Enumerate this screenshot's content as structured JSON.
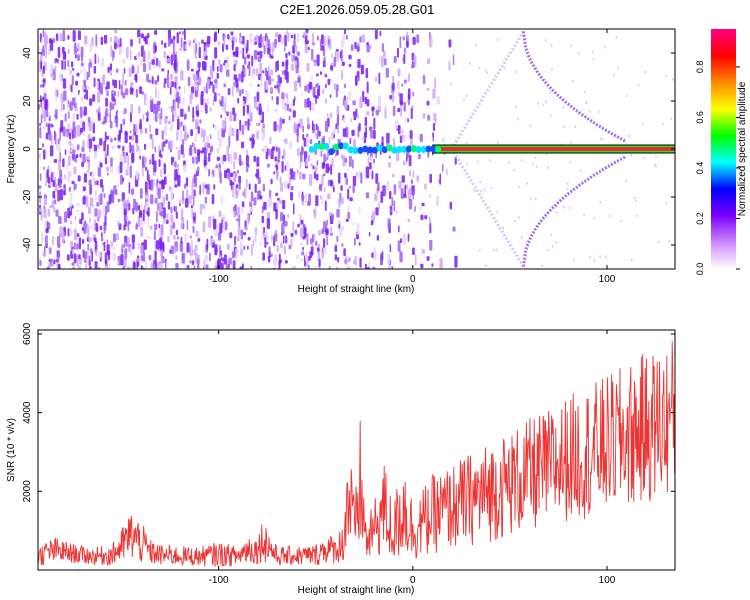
{
  "page_title": "C2E1.2026.059.05.28.G01",
  "chart_data": [
    {
      "type": "heatmap",
      "xlabel": "Height of straight line (km)",
      "ylabel": "Frequency (Hz)",
      "xlim": [
        -193,
        135
      ],
      "ylim": [
        -50,
        50
      ],
      "xticks": [
        -100,
        0,
        100
      ],
      "yticks": [
        -40,
        -20,
        0,
        20,
        40
      ],
      "colorbar": {
        "label": "Normalized spectral amplitude",
        "range": [
          0,
          0.95
        ],
        "ticks": [
          0.0,
          0.2,
          0.4,
          0.6,
          0.8
        ],
        "colors": [
          "#ffffff",
          "#cc88ff",
          "#7a00ff",
          "#0000ff",
          "#00ffff",
          "#00ff00",
          "#ffff00",
          "#ff8800",
          "#ff0000",
          "#ff0080"
        ]
      },
      "features": {
        "noise_region_x": [
          -193,
          20
        ],
        "carrier_frequency_hz": 0,
        "carrier_start_x": -52,
        "carrier_strong_from_x": 10,
        "sideband_vertex_x": 57,
        "sideband_vertex_freq_abs": 49,
        "sideband_end_x": 110,
        "sideband_end_freq_abs": 3
      }
    },
    {
      "type": "line",
      "xlabel": "Height of straight line (km)",
      "ylabel": "SNR (10 * v/v)",
      "xlim": [
        -193,
        135
      ],
      "ylim": [
        0,
        6100
      ],
      "xticks": [
        -100,
        0,
        100
      ],
      "yticks": [
        2000,
        4000,
        6000
      ],
      "series": [
        {
          "color": "#ee3333",
          "x": [
            -193,
            -185,
            -175,
            -165,
            -155,
            -150,
            -145,
            -140,
            -135,
            -130,
            -120,
            -110,
            -100,
            -90,
            -85,
            -80,
            -77,
            -74,
            -70,
            -60,
            -50,
            -45,
            -40,
            -36,
            -33,
            -30,
            -27,
            -24,
            -20,
            -15,
            -10,
            -5,
            0,
            5,
            10,
            20,
            30,
            40,
            50,
            60,
            70,
            80,
            90,
            100,
            110,
            120,
            130,
            135
          ],
          "center": [
            350,
            500,
            420,
            350,
            380,
            600,
            900,
            700,
            450,
            380,
            360,
            340,
            400,
            350,
            550,
            500,
            800,
            600,
            350,
            360,
            380,
            550,
            500,
            700,
            2000,
            900,
            2200,
            700,
            1000,
            1600,
            900,
            1700,
            1000,
            1200,
            1400,
            1600,
            1800,
            2000,
            2200,
            2400,
            2600,
            2850,
            3000,
            3200,
            3400,
            3600,
            3800,
            4000
          ],
          "spread": [
            500,
            700,
            500,
            450,
            550,
            900,
            1300,
            1100,
            650,
            550,
            500,
            500,
            650,
            500,
            800,
            700,
            1200,
            900,
            500,
            500,
            550,
            800,
            700,
            1000,
            3800,
            1400,
            3500,
            1000,
            1500,
            2500,
            1500,
            2800,
            1600,
            1800,
            2000,
            2200,
            2400,
            2600,
            2700,
            2900,
            3000,
            3200,
            3400,
            3500,
            3700,
            3900,
            4000,
            4000
          ]
        }
      ]
    }
  ]
}
